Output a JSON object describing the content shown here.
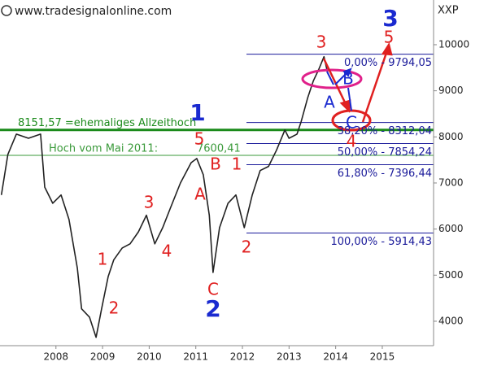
{
  "chart_data": {
    "type": "line",
    "source": "www.tradesignalonline.com",
    "symbol": "XXP",
    "x": [
      2007.33,
      2007.47,
      2007.65,
      2007.91,
      2008.17,
      2008.26,
      2008.43,
      2008.61,
      2008.78,
      2008.96,
      2009.05,
      2009.22,
      2009.36,
      2009.48,
      2009.62,
      2009.74,
      2009.92,
      2010.09,
      2010.27,
      2010.44,
      2010.62,
      2010.79,
      2010.96,
      2011.17,
      2011.4,
      2011.52,
      2011.66,
      2011.79,
      2011.87,
      2012.01,
      2012.19,
      2012.36,
      2012.54,
      2012.71,
      2012.88,
      2013.06,
      2013.23,
      2013.41,
      2013.5,
      2013.67,
      2013.76,
      2013.9,
      2014.02,
      2014.14,
      2014.25,
      2014.33
    ],
    "values": [
      6740,
      7620,
      8060,
      7970,
      8060,
      6910,
      6560,
      6740,
      6210,
      5150,
      4270,
      4090,
      3650,
      4270,
      4970,
      5330,
      5590,
      5680,
      5940,
      6300,
      5680,
      6030,
      6470,
      7000,
      7440,
      7530,
      7180,
      6300,
      5060,
      6030,
      6560,
      6740,
      6030,
      6740,
      7270,
      7360,
      7710,
      8150,
      7970,
      8060,
      8330,
      8850,
      9210,
      9470,
      9740,
      9380
    ],
    "color": "#222222",
    "xlim": [
      2007.3,
      2016.6
    ],
    "ylim": [
      3470,
      10970
    ],
    "xticks": [
      {
        "value": 2008.5,
        "label": "2008"
      },
      {
        "value": 2009.5,
        "label": "2009"
      },
      {
        "value": 2010.5,
        "label": "2010"
      },
      {
        "value": 2011.5,
        "label": "2011"
      },
      {
        "value": 2012.5,
        "label": "2012"
      },
      {
        "value": 2013.5,
        "label": "2013"
      },
      {
        "value": 2014.5,
        "label": "2014"
      },
      {
        "value": 2015.5,
        "label": "2015"
      }
    ],
    "yticks": [
      4000,
      5000,
      6000,
      7000,
      8000,
      9000,
      10000
    ],
    "levels": [
      {
        "value": 9794.05,
        "label": "0,00% - 9794,05"
      },
      {
        "value": 8312.04,
        "label": "38,20% - 8312,04"
      },
      {
        "value": 7854.24,
        "label": "50,00% - 7854,24"
      },
      {
        "value": 7396.44,
        "label": "61,80% - 7396,44"
      },
      {
        "value": 5914.43,
        "label": "100,00% - 5914,43"
      }
    ],
    "levels_color": "#1a1a9a",
    "support_lines": [
      {
        "value": 8151.57,
        "label": "8151,57 =ehemaliges Allzeithoch",
        "color": "#1a8a1a",
        "width": 3
      },
      {
        "value": 7600.41,
        "label": "Hoch vom Mai 2011:",
        "value_label": "7600,41",
        "color": "#3a9a3a",
        "width": 1
      }
    ],
    "wave_labels": [
      {
        "text": "1",
        "color": "#e02020"
      },
      {
        "text": "2",
        "color": "#e02020"
      },
      {
        "text": "3",
        "color": "#e02020"
      },
      {
        "text": "4",
        "color": "#e02020"
      },
      {
        "text": "5",
        "color": "#e02020"
      },
      {
        "text": "A",
        "color": "#e02020"
      },
      {
        "text": "B",
        "color": "#e02020"
      },
      {
        "text": "C",
        "color": "#e02020"
      },
      {
        "text": "1",
        "color": "#e02020"
      },
      {
        "text": "2",
        "color": "#e02020"
      },
      {
        "text": "3",
        "color": "#e02020"
      },
      {
        "text": "4",
        "color": "#e02020"
      },
      {
        "text": "5",
        "color": "#e02020"
      },
      {
        "text": "A",
        "color": "#1a2ad0"
      },
      {
        "text": "B",
        "color": "#1a2ad0"
      },
      {
        "text": "C",
        "color": "#1a2ad0"
      },
      {
        "text": "1",
        "color": "#1a2ad0"
      },
      {
        "text": "2",
        "color": "#1a2ad0"
      },
      {
        "text": "3",
        "color": "#1a2ad0"
      }
    ]
  }
}
